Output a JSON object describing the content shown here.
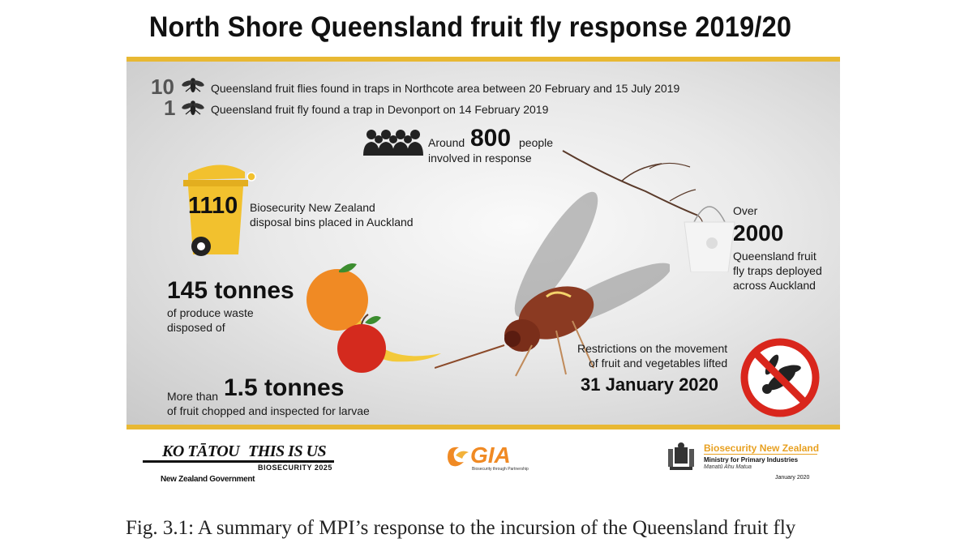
{
  "title": "North Shore Queensland fruit fly response 2019/20",
  "stats": {
    "northcote": {
      "number": "10",
      "text": "Queensland fruit flies found in traps in Northcote area between 20 February and 15 July 2019"
    },
    "devonport": {
      "number": "1",
      "text": "Queensland fruit fly found a trap in Devonport on 14 February 2019"
    },
    "people": {
      "prefix": "Around",
      "number": "800",
      "suffix": "people",
      "line2": "involved in response"
    },
    "bins": {
      "number": "1110",
      "line1": "Biosecurity New Zealand",
      "line2": "disposal bins placed in Auckland"
    },
    "traps": {
      "prefix": "Over",
      "number": "2000",
      "line1": "Queensland fruit",
      "line2": "fly traps deployed",
      "line3": "across Auckland"
    },
    "produce": {
      "number": "145 tonnes",
      "line1": "of produce waste",
      "line2": "disposed of"
    },
    "restrictions": {
      "line1": "Restrictions on the movement",
      "line2": "of fruit and vegetables lifted",
      "date": "31 January 2020"
    },
    "fruit": {
      "prefix": "More than",
      "number": "1.5 tonnes",
      "line1": "of fruit chopped and inspected for larvae"
    }
  },
  "footer": {
    "kotatou": "KO TĀTOU",
    "thisisus": "THIS IS US",
    "biosecurity2025": "BIOSECURITY 2025",
    "nzgov": "New Zealand Government",
    "gia": "GIA",
    "gia_tag": "Biosecurity through Partnership",
    "bnz": "Biosecurity New Zealand",
    "mpi": "Ministry for Primary Industries",
    "maori": "Manatū Ahu Matua",
    "date": "January 2020"
  },
  "caption": {
    "line1": "Fig. 3.1: A summary of MPI’s response to the incursion of the Queensland fruit fly"
  },
  "colors": {
    "accent": "#e8b833",
    "stop": "#d9261c",
    "bin": "#f2c12e"
  }
}
